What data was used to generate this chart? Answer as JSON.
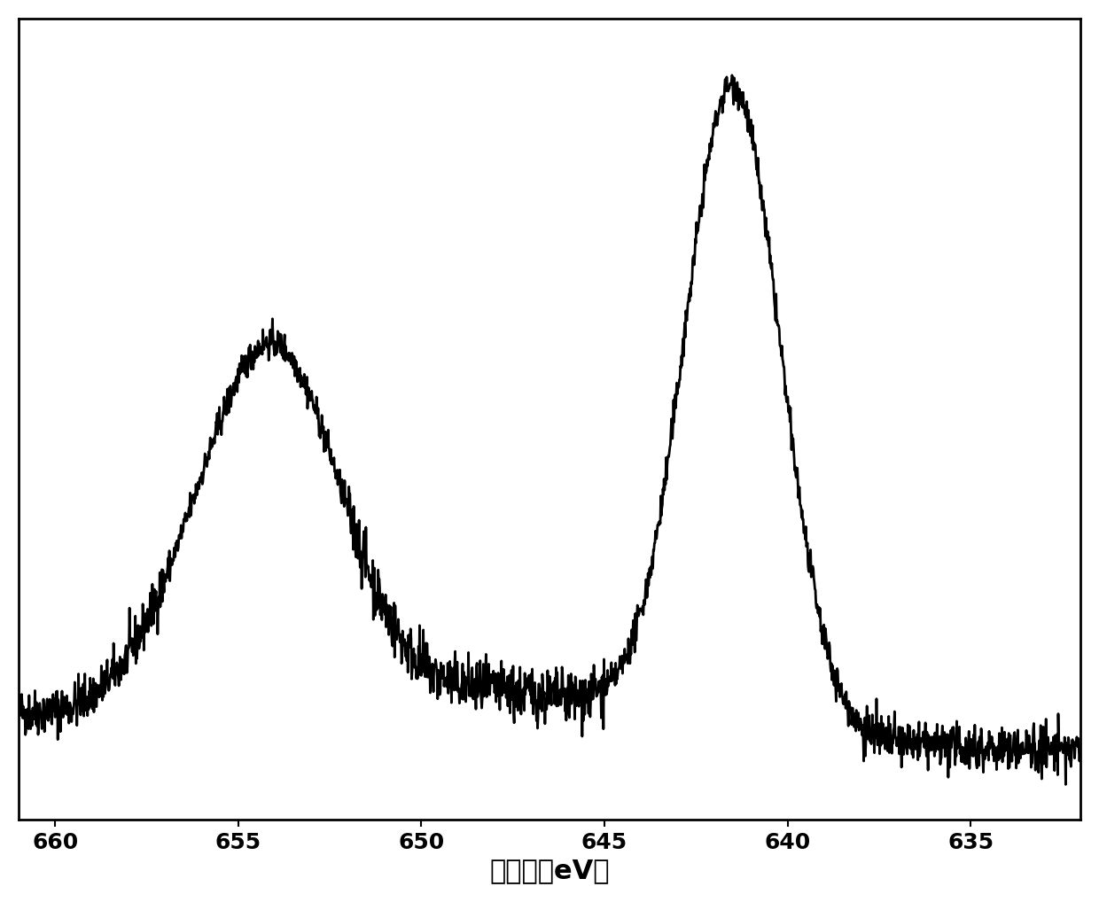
{
  "xlabel": "结合能（eV）",
  "xlabel_fontsize": 22,
  "tick_fontsize": 18,
  "line_color": "#000000",
  "line_width": 2.0,
  "background_color": "#ffffff",
  "xlim": [
    633,
    661
  ],
  "x_ticks": [
    660,
    655,
    650,
    645,
    640,
    635
  ],
  "noise_seed": 42
}
